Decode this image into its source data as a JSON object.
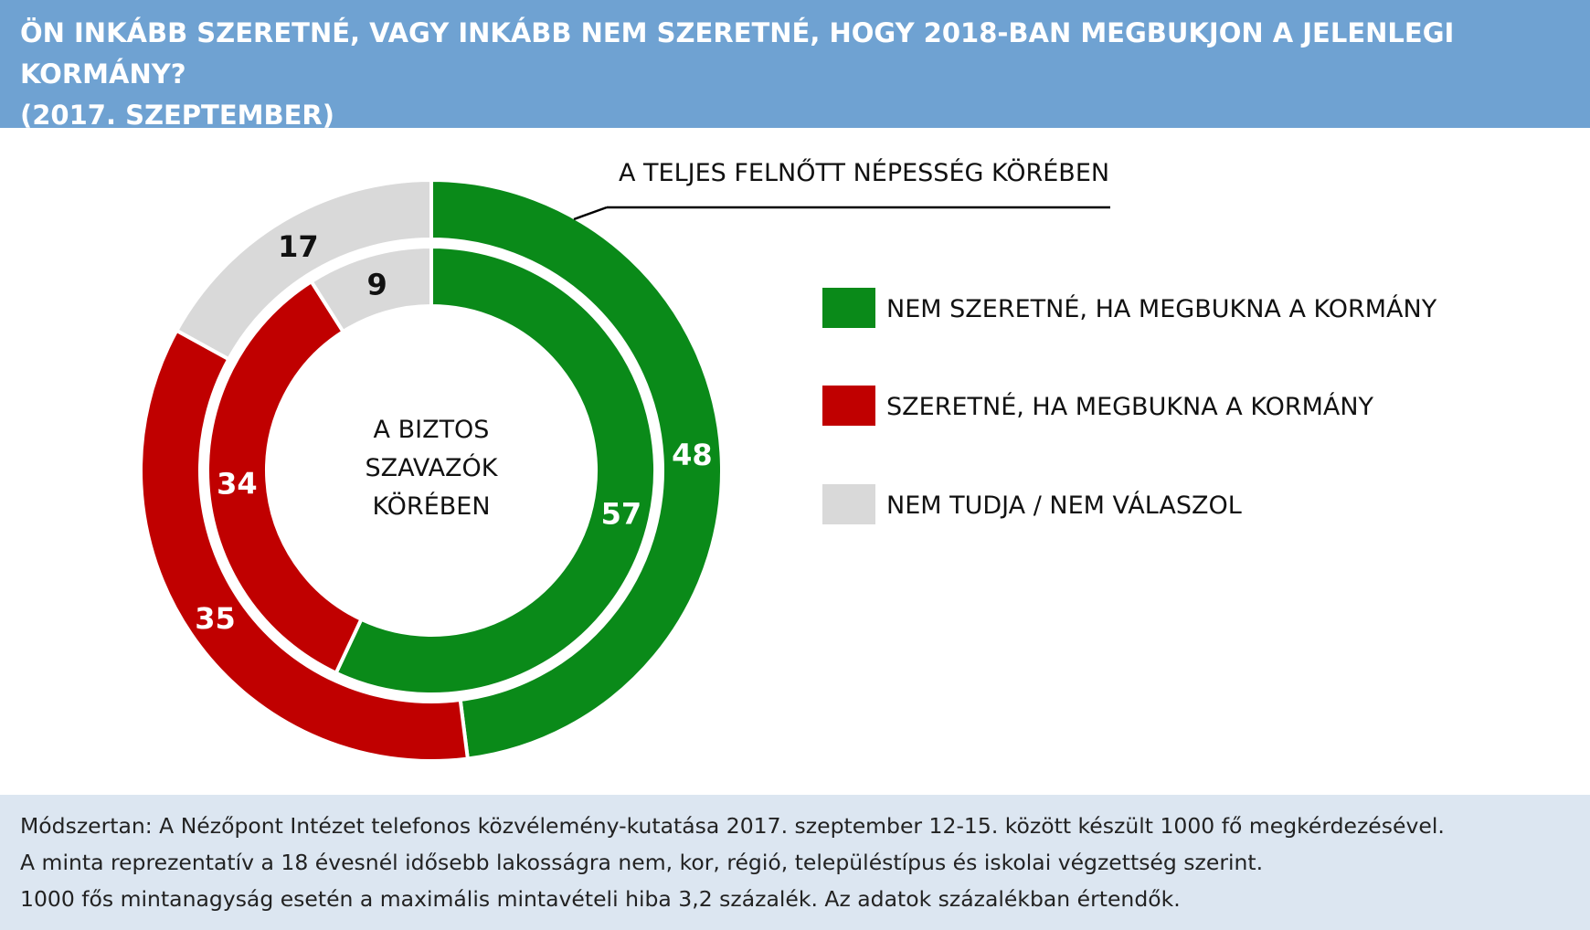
{
  "header": {
    "title_line1": "ÖN INKÁBB SZERETNÉ, VAGY INKÁBB NEM SZERETNÉ, HOGY 2018-BAN MEGBUKJON A JELENLEGI KORMÁNY?",
    "title_line2": "(2017. SZEPTEMBER)"
  },
  "chart_data": {
    "type": "pie",
    "variant": "double-donut",
    "categories": [
      "NEM SZERETNÉ, HA MEGBUKNA A KORMÁNY",
      "SZERETNÉ, HA MEGBUKNA A KORMÁNY",
      "NEM TUDJA / NEM VÁLASZOL"
    ],
    "colors": [
      "#0a8a19",
      "#c00000",
      "#d9d9d9"
    ],
    "series": [
      {
        "name": "A TELJES FELNŐTT NÉPESSÉG KÖRÉBEN",
        "ring": "outer",
        "values": [
          48,
          35,
          17
        ]
      },
      {
        "name": "A BIZTOS SZAVAZÓK KÖRÉBEN",
        "ring": "inner",
        "values": [
          57,
          34,
          9
        ]
      }
    ],
    "outer_label": "A TELJES FELNŐTT NÉPESSÉG KÖRÉBEN",
    "center_label": [
      "A BIZTOS",
      "SZAVAZÓK",
      "KÖRÉBEN"
    ],
    "legend_position": "right"
  },
  "legend": {
    "items": [
      {
        "label": "NEM SZERETNÉ, HA MEGBUKNA A KORMÁNY",
        "color": "#0a8a19"
      },
      {
        "label": "SZERETNÉ, HA MEGBUKNA A KORMÁNY",
        "color": "#c00000"
      },
      {
        "label": "NEM TUDJA / NEM VÁLASZOL",
        "color": "#d9d9d9"
      }
    ]
  },
  "footer": {
    "line1": "Módszertan: A Nézőpont Intézet telefonos közvélemény-kutatása 2017. szeptember 12-15. között készült 1000 fő megkérdezésével.",
    "line2": "A minta reprezentatív a 18 évesnél idősebb lakosságra nem, kor, régió, településtípus és iskolai végzettség szerint.",
    "line3": "1000 fős mintanagyság esetén a maximális mintavételi hiba 3,2 százalék. Az adatok százalékban értendők."
  }
}
